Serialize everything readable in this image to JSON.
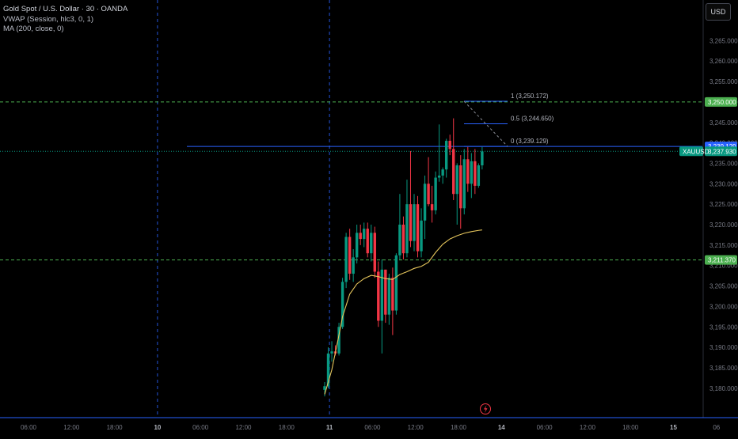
{
  "header": {
    "symbol_line": "Gold Spot / U.S. Dollar · 30 · OANDA",
    "indicator_vwap": "VWAP (Session, hlc3, 0, 1)",
    "indicator_ma": "MA (200, close, 0)"
  },
  "currency_button": "USD",
  "colors": {
    "background": "#000000",
    "up_candle": "#089981",
    "down_candle": "#f23645",
    "grid_dashed": "#2962ff",
    "hline_green": "#4caf50",
    "hline_blue": "#2962ff",
    "ma_line": "#e6c65c",
    "axis_text": "#787b86",
    "fib_text": "#b2b5be",
    "symbol_tag": "#089981",
    "price_tag_green": "#4caf50",
    "price_tag_blue": "#2962ff",
    "event_icon": "#f23645"
  },
  "chart_data": {
    "type": "candlestick",
    "symbol": "XAUUSD",
    "timeframe": "30",
    "y_axis": {
      "ticks": [
        "3,265.000",
        "3,260.000",
        "3,255.000",
        "3,250.000",
        "3,245.000",
        "3,240.000",
        "3,235.000",
        "3,230.000",
        "3,225.000",
        "3,220.000",
        "3,215.000",
        "3,210.000",
        "3,205.000",
        "3,200.000",
        "3,195.000",
        "3,190.000",
        "3,185.000",
        "3,180.000"
      ],
      "ylim": [
        3178.0,
        3269.0
      ]
    },
    "x_axis": {
      "ticks": [
        "06:00",
        "12:00",
        "18:00",
        "10",
        "06:00",
        "12:00",
        "18:00",
        "11",
        "06:00",
        "12:00",
        "18:00",
        "14",
        "06:00",
        "12:00",
        "18:00",
        "15",
        "06"
      ],
      "bold": [
        "10",
        "11",
        "14",
        "15"
      ]
    },
    "horizontal_lines": [
      {
        "price": 3250.0,
        "label": "3,250.000",
        "style": "dashed",
        "color": "#4caf50"
      },
      {
        "price": 3211.37,
        "label": "3,211.370",
        "style": "dashed",
        "color": "#4caf50"
      },
      {
        "price": 3239.129,
        "label": "3,239.129",
        "style": "solid",
        "color": "#2962ff"
      }
    ],
    "current_price": {
      "symbol": "XAUUSD",
      "price": 3237.93,
      "label": "3,237.930"
    },
    "fib_levels": [
      {
        "ratio": "1",
        "price": 3250.172,
        "label": "1 (3,250.172)"
      },
      {
        "ratio": "0.5",
        "price": 3244.65,
        "label": "0.5 (3,244.650)"
      },
      {
        "ratio": "0",
        "price": 3239.129,
        "label": "0 (3,239.129)"
      }
    ],
    "vertical_markers": [
      "10",
      "11"
    ],
    "candles": [
      {
        "o": 3179.6,
        "h": 3181.5,
        "l": 3178.0,
        "c": 3180.5
      },
      {
        "o": 3180.5,
        "h": 3190.0,
        "l": 3180.0,
        "c": 3188.5
      },
      {
        "o": 3188.5,
        "h": 3191.5,
        "l": 3186.5,
        "c": 3189.0
      },
      {
        "o": 3189.0,
        "h": 3190.5,
        "l": 3188.0,
        "c": 3188.5
      },
      {
        "o": 3188.5,
        "h": 3196.0,
        "l": 3188.0,
        "c": 3195.0
      },
      {
        "o": 3195.0,
        "h": 3207.0,
        "l": 3194.5,
        "c": 3206.0
      },
      {
        "o": 3206.0,
        "h": 3218.0,
        "l": 3204.5,
        "c": 3217.0
      },
      {
        "o": 3217.0,
        "h": 3219.0,
        "l": 3206.5,
        "c": 3208.0
      },
      {
        "o": 3208.0,
        "h": 3214.0,
        "l": 3206.0,
        "c": 3212.0
      },
      {
        "o": 3212.0,
        "h": 3220.0,
        "l": 3210.5,
        "c": 3218.0
      },
      {
        "o": 3218.0,
        "h": 3220.0,
        "l": 3215.0,
        "c": 3216.5
      },
      {
        "o": 3216.5,
        "h": 3220.5,
        "l": 3214.5,
        "c": 3219.0
      },
      {
        "o": 3219.0,
        "h": 3220.5,
        "l": 3212.0,
        "c": 3213.0
      },
      {
        "o": 3213.0,
        "h": 3220.0,
        "l": 3211.0,
        "c": 3218.0
      },
      {
        "o": 3218.0,
        "h": 3219.5,
        "l": 3207.0,
        "c": 3208.5
      },
      {
        "o": 3208.5,
        "h": 3211.0,
        "l": 3195.0,
        "c": 3196.5
      },
      {
        "o": 3196.5,
        "h": 3211.5,
        "l": 3188.5,
        "c": 3209.0
      },
      {
        "o": 3209.0,
        "h": 3209.0,
        "l": 3196.0,
        "c": 3198.0
      },
      {
        "o": 3198.0,
        "h": 3208.0,
        "l": 3195.5,
        "c": 3207.0
      },
      {
        "o": 3207.0,
        "h": 3209.5,
        "l": 3193.0,
        "c": 3199.0
      },
      {
        "o": 3199.0,
        "h": 3213.0,
        "l": 3198.0,
        "c": 3212.5
      },
      {
        "o": 3212.5,
        "h": 3227.5,
        "l": 3211.5,
        "c": 3220.0
      },
      {
        "o": 3220.0,
        "h": 3222.0,
        "l": 3211.5,
        "c": 3213.0
      },
      {
        "o": 3213.0,
        "h": 3231.0,
        "l": 3212.0,
        "c": 3225.0
      },
      {
        "o": 3225.0,
        "h": 3238.0,
        "l": 3214.5,
        "c": 3216.0
      },
      {
        "o": 3216.0,
        "h": 3227.5,
        "l": 3213.5,
        "c": 3225.0
      },
      {
        "o": 3225.0,
        "h": 3227.0,
        "l": 3212.0,
        "c": 3213.5
      },
      {
        "o": 3213.5,
        "h": 3224.0,
        "l": 3212.0,
        "c": 3221.0
      },
      {
        "o": 3221.0,
        "h": 3232.0,
        "l": 3216.5,
        "c": 3230.0
      },
      {
        "o": 3230.0,
        "h": 3236.5,
        "l": 3224.5,
        "c": 3225.0
      },
      {
        "o": 3225.0,
        "h": 3229.5,
        "l": 3220.5,
        "c": 3223.5
      },
      {
        "o": 3223.5,
        "h": 3233.0,
        "l": 3222.5,
        "c": 3231.5
      },
      {
        "o": 3231.5,
        "h": 3244.5,
        "l": 3230.5,
        "c": 3232.0
      },
      {
        "o": 3232.0,
        "h": 3234.0,
        "l": 3230.0,
        "c": 3233.5
      },
      {
        "o": 3233.5,
        "h": 3241.0,
        "l": 3231.5,
        "c": 3240.5
      },
      {
        "o": 3240.5,
        "h": 3242.0,
        "l": 3237.0,
        "c": 3238.5
      },
      {
        "o": 3238.5,
        "h": 3246.0,
        "l": 3226.0,
        "c": 3227.5
      },
      {
        "o": 3227.5,
        "h": 3235.0,
        "l": 3220.0,
        "c": 3234.5
      },
      {
        "o": 3234.5,
        "h": 3237.0,
        "l": 3219.0,
        "c": 3224.0
      },
      {
        "o": 3224.0,
        "h": 3238.5,
        "l": 3222.5,
        "c": 3236.0
      },
      {
        "o": 3236.0,
        "h": 3239.0,
        "l": 3228.0,
        "c": 3230.0
      },
      {
        "o": 3230.0,
        "h": 3237.5,
        "l": 3226.5,
        "c": 3235.5
      },
      {
        "o": 3235.5,
        "h": 3238.5,
        "l": 3227.5,
        "c": 3229.5
      },
      {
        "o": 3229.5,
        "h": 3235.0,
        "l": 3229.0,
        "c": 3234.5
      },
      {
        "o": 3234.5,
        "h": 3239.0,
        "l": 3233.5,
        "c": 3237.9
      }
    ],
    "ma_line": [
      {
        "i": 0,
        "v": 3178.5
      },
      {
        "i": 2,
        "v": 3184.5
      },
      {
        "i": 4,
        "v": 3193.0
      },
      {
        "i": 5,
        "v": 3197.5
      },
      {
        "i": 7,
        "v": 3203.0
      },
      {
        "i": 9,
        "v": 3205.5
      },
      {
        "i": 11,
        "v": 3206.8
      },
      {
        "i": 13,
        "v": 3207.6
      },
      {
        "i": 15,
        "v": 3207.3
      },
      {
        "i": 17,
        "v": 3206.8
      },
      {
        "i": 19,
        "v": 3206.6
      },
      {
        "i": 21,
        "v": 3207.8
      },
      {
        "i": 23,
        "v": 3208.5
      },
      {
        "i": 25,
        "v": 3209.3
      },
      {
        "i": 27,
        "v": 3209.8
      },
      {
        "i": 29,
        "v": 3210.8
      },
      {
        "i": 31,
        "v": 3213.2
      },
      {
        "i": 33,
        "v": 3215.2
      },
      {
        "i": 35,
        "v": 3216.5
      },
      {
        "i": 37,
        "v": 3217.3
      },
      {
        "i": 39,
        "v": 3217.9
      },
      {
        "i": 41,
        "v": 3218.3
      },
      {
        "i": 43,
        "v": 3218.6
      },
      {
        "i": 44,
        "v": 3218.7
      }
    ]
  }
}
